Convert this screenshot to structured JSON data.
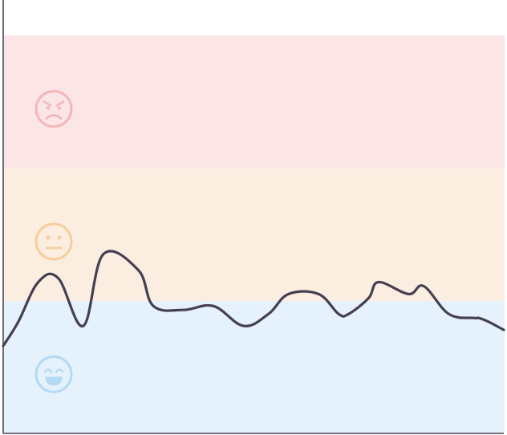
{
  "chart_data": {
    "type": "line",
    "title": "",
    "xlabel": "",
    "ylabel": "",
    "grid": false,
    "ylim": [
      0,
      100
    ],
    "bands": [
      {
        "name": "angry",
        "icon": "angry-face-icon",
        "range": [
          66.7,
          100
        ],
        "fill": "#fbe5e6",
        "icon_color": "#f4b6b8"
      },
      {
        "name": "neutral",
        "icon": "neutral-face-icon",
        "range": [
          33.3,
          66.7
        ],
        "fill": "#fbeee1",
        "icon_color": "#f6cf9b"
      },
      {
        "name": "happy",
        "icon": "happy-face-icon",
        "range": [
          0,
          33.3
        ],
        "fill": "#e5f2fb",
        "icon_color": "#b3daf4"
      }
    ],
    "series": [
      {
        "color": "#453f52",
        "x": [
          0,
          3,
          7,
          11,
          16,
          20,
          27,
          30,
          36,
          42,
          48,
          53,
          57,
          63,
          67,
          69,
          73,
          75,
          81,
          84,
          89,
          94,
          95,
          97,
          100
        ],
        "y": [
          22,
          28,
          38,
          39,
          27,
          45,
          41,
          32,
          31,
          32,
          27,
          30,
          35,
          35,
          30,
          30,
          34,
          38,
          35,
          37,
          30,
          29,
          29,
          28,
          26
        ]
      }
    ]
  }
}
